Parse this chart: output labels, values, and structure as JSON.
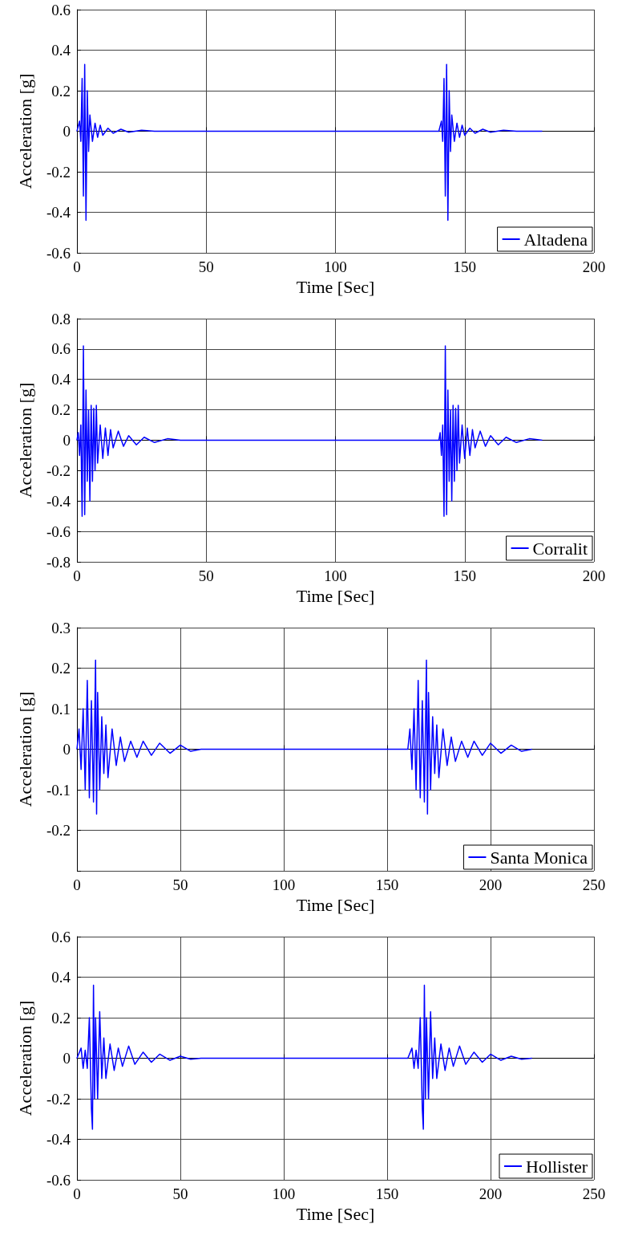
{
  "chart_data": [
    {
      "type": "line",
      "xlabel": "Time [Sec]",
      "ylabel": "Acceleration [g]",
      "xlim": [
        0,
        200
      ],
      "xticks": [
        0,
        50,
        100,
        150,
        200
      ],
      "ylim": [
        -0.6,
        0.6
      ],
      "yticks": [
        -0.6,
        -0.4,
        -0.2,
        0,
        0.2,
        0.4,
        0.6
      ],
      "grid": true,
      "legend": "bottom right",
      "series": [
        {
          "name": "Altadena",
          "color": "#0000ff",
          "x": [
            0,
            1,
            1.5,
            2,
            2.5,
            3,
            3.5,
            4,
            4.5,
            5,
            6,
            7,
            8,
            9,
            10,
            12,
            14,
            17,
            20,
            25,
            30,
            40,
            140,
            141,
            141.5,
            142,
            142.5,
            143,
            143.5,
            144,
            144.5,
            145,
            146,
            147,
            148,
            149,
            150,
            152,
            154,
            157,
            160,
            165,
            170,
            180
          ],
          "values": [
            0,
            0.05,
            -0.05,
            0.26,
            -0.32,
            0.33,
            -0.44,
            0.2,
            -0.1,
            0.08,
            -0.05,
            0.04,
            -0.03,
            0.03,
            -0.02,
            0.015,
            -0.01,
            0.01,
            -0.005,
            0.005,
            0,
            0,
            0,
            0.05,
            -0.05,
            0.26,
            -0.32,
            0.33,
            -0.44,
            0.2,
            -0.1,
            0.08,
            -0.05,
            0.04,
            -0.03,
            0.03,
            -0.02,
            0.015,
            -0.01,
            0.01,
            -0.005,
            0.005,
            0,
            0
          ]
        }
      ]
    },
    {
      "type": "line",
      "xlabel": "Time [Sec]",
      "ylabel": "Acceleration [g]",
      "xlim": [
        0,
        200
      ],
      "xticks": [
        0,
        50,
        100,
        150,
        200
      ],
      "ylim": [
        -0.8,
        0.8
      ],
      "yticks": [
        -0.8,
        -0.6,
        -0.4,
        -0.2,
        0,
        0.2,
        0.4,
        0.6,
        0.8
      ],
      "grid": true,
      "legend": "bottom right",
      "series": [
        {
          "name": "Corralit",
          "color": "#0000ff",
          "x": [
            0,
            0.5,
            1,
            1.5,
            2,
            2.5,
            3,
            3.5,
            4,
            4.5,
            5,
            5.5,
            6,
            6.5,
            7,
            7.5,
            8,
            9,
            10,
            11,
            12,
            13,
            14,
            16,
            18,
            20,
            23,
            26,
            30,
            35,
            40,
            140,
            140.5,
            141,
            141.5,
            142,
            142.5,
            143,
            143.5,
            144,
            144.5,
            145,
            145.5,
            146,
            146.5,
            147,
            147.5,
            148,
            149,
            150,
            151,
            152,
            153,
            154,
            156,
            158,
            160,
            163,
            166,
            170,
            175,
            180
          ],
          "values": [
            0,
            0.05,
            -0.1,
            0.1,
            -0.5,
            0.62,
            -0.49,
            0.33,
            -0.27,
            0.2,
            -0.4,
            0.23,
            -0.27,
            0.21,
            -0.2,
            0.23,
            -0.15,
            0.1,
            -0.12,
            0.08,
            -0.1,
            0.07,
            -0.05,
            0.06,
            -0.04,
            0.03,
            -0.03,
            0.02,
            -0.015,
            0.01,
            0,
            0,
            0.05,
            -0.1,
            0.1,
            -0.5,
            0.62,
            -0.49,
            0.33,
            -0.27,
            0.2,
            -0.4,
            0.23,
            -0.27,
            0.21,
            -0.2,
            0.23,
            -0.15,
            0.1,
            -0.12,
            0.08,
            -0.1,
            0.07,
            -0.05,
            0.06,
            -0.04,
            0.03,
            -0.03,
            0.02,
            -0.015,
            0.01,
            0
          ]
        }
      ]
    },
    {
      "type": "line",
      "xlabel": "Time [Sec]",
      "ylabel": "Acceleration [g]",
      "xlim": [
        0,
        250
      ],
      "xticks": [
        0,
        50,
        100,
        150,
        200,
        250
      ],
      "ylim": [
        -0.3,
        0.3
      ],
      "yticks": [
        {
          "value": -0.3,
          "label": null
        },
        -0.2,
        -0.1,
        0,
        0.1,
        0.2,
        0.3
      ],
      "grid": true,
      "legend": "bottom right",
      "series": [
        {
          "name": "Santa Monica",
          "color": "#0000ff",
          "x": [
            0,
            1,
            2,
            3,
            4,
            5,
            6,
            7,
            8,
            9,
            9.5,
            10,
            11,
            12,
            13,
            14,
            15,
            17,
            19,
            21,
            23,
            26,
            29,
            32,
            36,
            40,
            45,
            50,
            55,
            60,
            160,
            161,
            162,
            163,
            164,
            165,
            166,
            167,
            168,
            169,
            169.5,
            170,
            171,
            172,
            173,
            174,
            175,
            177,
            179,
            181,
            183,
            186,
            189,
            192,
            196,
            200,
            205,
            210,
            215,
            220
          ],
          "values": [
            0,
            0.05,
            -0.05,
            0.1,
            -0.1,
            0.17,
            -0.12,
            0.12,
            -0.13,
            0.22,
            -0.16,
            0.14,
            -0.1,
            0.08,
            -0.06,
            0.06,
            -0.07,
            0.05,
            -0.04,
            0.03,
            -0.03,
            0.02,
            -0.02,
            0.02,
            -0.015,
            0.015,
            -0.01,
            0.01,
            -0.005,
            0,
            0,
            0.05,
            -0.05,
            0.1,
            -0.1,
            0.17,
            -0.12,
            0.12,
            -0.13,
            0.22,
            -0.16,
            0.14,
            -0.1,
            0.08,
            -0.06,
            0.06,
            -0.07,
            0.05,
            -0.04,
            0.03,
            -0.03,
            0.02,
            -0.02,
            0.02,
            -0.015,
            0.015,
            -0.01,
            0.01,
            -0.005,
            0
          ]
        }
      ]
    },
    {
      "type": "line",
      "xlabel": "Time [Sec]",
      "ylabel": "Acceleration [g]",
      "xlim": [
        0,
        250
      ],
      "xticks": [
        0,
        50,
        100,
        150,
        200,
        250
      ],
      "ylim": [
        -0.6,
        0.6
      ],
      "yticks": [
        -0.6,
        -0.4,
        -0.2,
        0,
        0.2,
        0.4,
        0.6
      ],
      "grid": true,
      "legend": "bottom right",
      "series": [
        {
          "name": "Hollister",
          "color": "#0000ff",
          "x": [
            0,
            2,
            3,
            4,
            5,
            6,
            7,
            7.5,
            8,
            8.5,
            9,
            10,
            11,
            12,
            13,
            14,
            16,
            18,
            20,
            22,
            25,
            28,
            32,
            36,
            40,
            45,
            50,
            55,
            60,
            160,
            162,
            163,
            164,
            165,
            166,
            167,
            167.5,
            168,
            168.5,
            169,
            170,
            171,
            172,
            173,
            174,
            176,
            178,
            180,
            182,
            185,
            188,
            192,
            196,
            200,
            205,
            210,
            215,
            220
          ],
          "values": [
            0,
            0.05,
            -0.05,
            0.04,
            -0.05,
            0.2,
            -0.25,
            -0.35,
            0.36,
            -0.2,
            0.2,
            -0.2,
            0.23,
            -0.1,
            0.1,
            -0.1,
            0.07,
            -0.06,
            0.05,
            -0.04,
            0.06,
            -0.03,
            0.03,
            -0.02,
            0.02,
            -0.01,
            0.01,
            -0.005,
            0,
            0,
            0.05,
            -0.05,
            0.04,
            -0.05,
            0.2,
            -0.25,
            -0.35,
            0.36,
            -0.2,
            0.2,
            -0.2,
            0.23,
            -0.1,
            0.1,
            -0.1,
            0.07,
            -0.06,
            0.05,
            -0.04,
            0.06,
            -0.03,
            0.03,
            -0.02,
            0.02,
            -0.01,
            0.01,
            -0.005,
            0
          ]
        }
      ]
    }
  ]
}
